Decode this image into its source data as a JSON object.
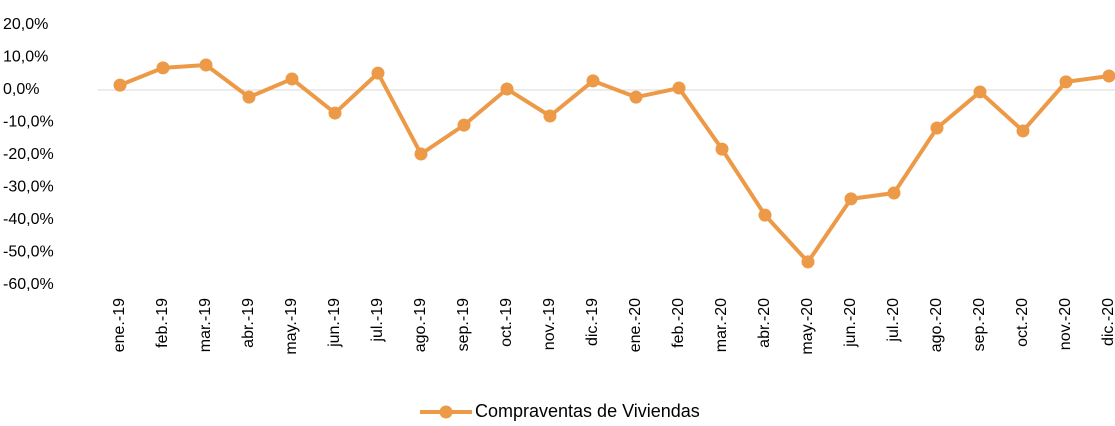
{
  "chart_data": {
    "type": "line",
    "categories": [
      "ene.-19",
      "feb.-19",
      "mar.-19",
      "abr.-19",
      "may.-19",
      "jun.-19",
      "jul.-19",
      "ago.-19",
      "sep.-19",
      "oct.-19",
      "nov.-19",
      "dic.-19",
      "ene.-20",
      "feb.-20",
      "mar.-20",
      "abr.-20",
      "may.-20",
      "jun.-20",
      "jul.-20",
      "ago.-20",
      "sep.-20",
      "oct.-20",
      "nov.-20",
      "dic.-20"
    ],
    "series": [
      {
        "name": "Compraventas de Viviendas",
        "color": "#ed9a48",
        "values": [
          1.5,
          6.8,
          7.7,
          -2.2,
          3.4,
          -7.1,
          5.2,
          -19.7,
          -10.8,
          0.3,
          -8.0,
          2.8,
          -2.2,
          0.6,
          -18.2,
          -38.5,
          -52.9,
          -33.5,
          -31.7,
          -11.7,
          -0.6,
          -12.6,
          2.5,
          4.3
        ]
      }
    ],
    "ylim": [
      -60,
      20
    ],
    "yticks": [
      {
        "value": -60,
        "label": "-60,0%"
      },
      {
        "value": -50,
        "label": "-50,0%"
      },
      {
        "value": -40,
        "label": "-40,0%"
      },
      {
        "value": -30,
        "label": "-30,0%"
      },
      {
        "value": -20,
        "label": "-20,0%"
      },
      {
        "value": -10,
        "label": "-10,0%"
      },
      {
        "value": 0,
        "label": "0,0%"
      },
      {
        "value": 10,
        "label": "10,0%"
      },
      {
        "value": 20,
        "label": "20,0%"
      }
    ],
    "grid": false,
    "legend": "bottom"
  }
}
